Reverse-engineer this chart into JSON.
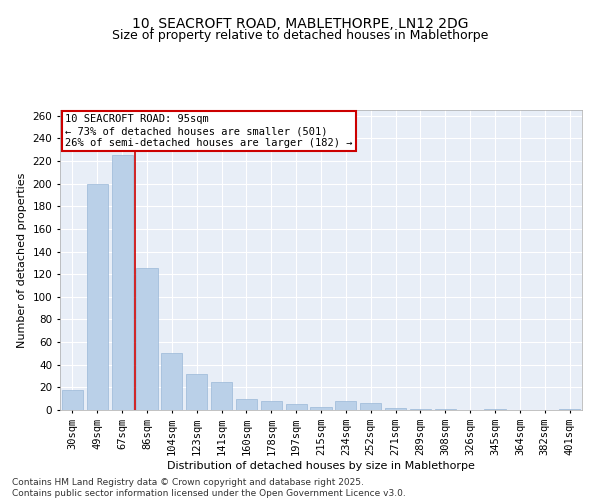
{
  "title_line1": "10, SEACROFT ROAD, MABLETHORPE, LN12 2DG",
  "title_line2": "Size of property relative to detached houses in Mablethorpe",
  "xlabel": "Distribution of detached houses by size in Mablethorpe",
  "ylabel": "Number of detached properties",
  "categories": [
    "30sqm",
    "49sqm",
    "67sqm",
    "86sqm",
    "104sqm",
    "123sqm",
    "141sqm",
    "160sqm",
    "178sqm",
    "197sqm",
    "215sqm",
    "234sqm",
    "252sqm",
    "271sqm",
    "289sqm",
    "308sqm",
    "326sqm",
    "345sqm",
    "364sqm",
    "382sqm",
    "401sqm"
  ],
  "values": [
    18,
    200,
    225,
    125,
    50,
    32,
    25,
    10,
    8,
    5,
    3,
    8,
    6,
    2,
    1,
    1,
    0,
    1,
    0,
    0,
    1
  ],
  "bar_color": "#bad0e8",
  "bar_edge_color": "#9ab8d8",
  "vline_x": 2.5,
  "annotation_text": "10 SEACROFT ROAD: 95sqm\n← 73% of detached houses are smaller (501)\n26% of semi-detached houses are larger (182) →",
  "annotation_box_facecolor": "#ffffff",
  "annotation_box_edgecolor": "#cc0000",
  "ylim": [
    0,
    265
  ],
  "yticks": [
    0,
    20,
    40,
    60,
    80,
    100,
    120,
    140,
    160,
    180,
    200,
    220,
    240,
    260
  ],
  "background_color": "#e8eef7",
  "grid_color": "#ffffff",
  "footer_line1": "Contains HM Land Registry data © Crown copyright and database right 2025.",
  "footer_line2": "Contains public sector information licensed under the Open Government Licence v3.0.",
  "title_fontsize": 10,
  "subtitle_fontsize": 9,
  "axis_label_fontsize": 8,
  "tick_fontsize": 7.5,
  "annotation_fontsize": 7.5,
  "footer_fontsize": 6.5
}
